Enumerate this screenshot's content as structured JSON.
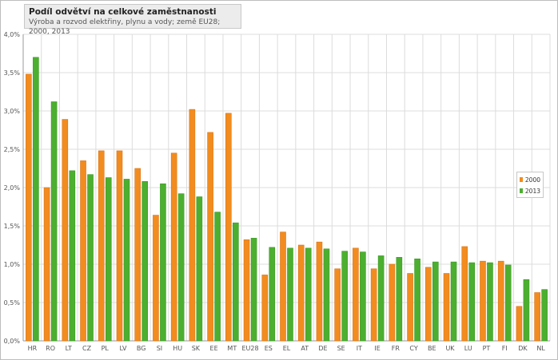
{
  "chart_data": {
    "type": "bar",
    "title": "Podíl odvětví na celkové zaměstnanosti",
    "subtitle": "Výroba a rozvod elektřiny, plynu a vody; země EU28; 2000, 2013",
    "xlabel": "",
    "ylabel": "",
    "ylim": [
      0,
      4.0
    ],
    "yticks": [
      "0,0%",
      "0,5%",
      "1,0%",
      "1,5%",
      "2,0%",
      "2,5%",
      "3,0%",
      "3,5%",
      "4,0%"
    ],
    "grid": true,
    "legend_position": "right",
    "categories": [
      "HR",
      "RO",
      "LT",
      "CZ",
      "PL",
      "LV",
      "BG",
      "SI",
      "HU",
      "SK",
      "EE",
      "MT",
      "EU28",
      "ES",
      "EL",
      "AT",
      "DE",
      "SE",
      "IT",
      "IE",
      "FR",
      "CY",
      "BE",
      "UK",
      "LU",
      "PT",
      "FI",
      "DK",
      "NL"
    ],
    "series": [
      {
        "name": "2000",
        "color": "#f28c1e",
        "values": [
          3.48,
          2.0,
          2.89,
          2.35,
          2.48,
          2.48,
          2.25,
          1.64,
          2.45,
          3.02,
          2.72,
          2.97,
          1.32,
          0.86,
          1.42,
          1.25,
          1.29,
          0.94,
          1.21,
          0.94,
          1.0,
          0.88,
          0.96,
          0.88,
          1.23,
          1.04,
          1.04,
          0.45,
          0.63
        ]
      },
      {
        "name": "2013",
        "color": "#4caf30",
        "values": [
          3.7,
          3.12,
          2.22,
          2.17,
          2.13,
          2.11,
          2.08,
          2.05,
          1.92,
          1.88,
          1.68,
          1.54,
          1.34,
          1.22,
          1.21,
          1.21,
          1.2,
          1.17,
          1.16,
          1.11,
          1.09,
          1.07,
          1.03,
          1.03,
          1.02,
          1.02,
          0.99,
          0.8,
          0.67
        ]
      }
    ]
  }
}
